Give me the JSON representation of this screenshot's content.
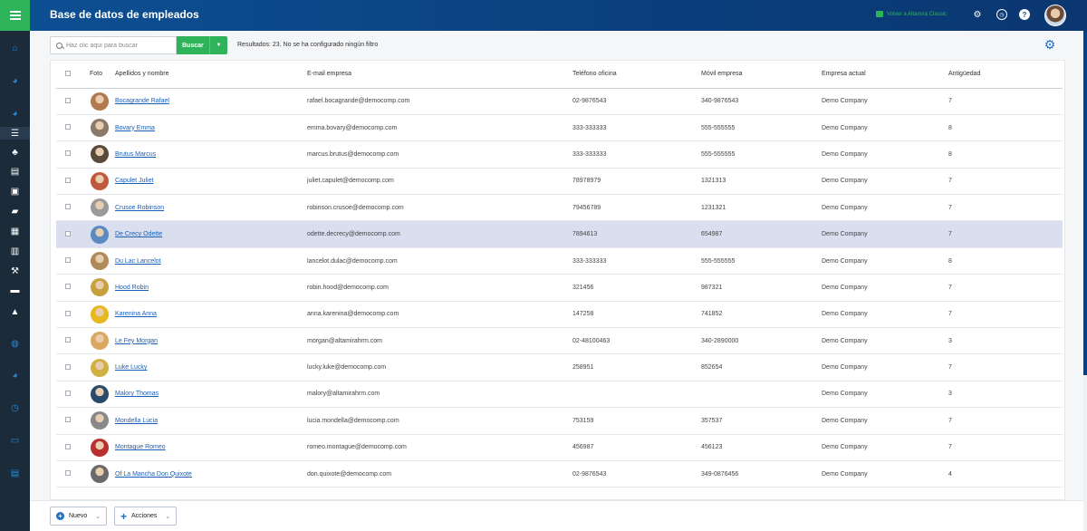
{
  "header": {
    "title": "Base de datos de empleados",
    "classic_link": "Volver a Altamira Classic"
  },
  "toolbar": {
    "search_placeholder": "Haz clic aquí para buscar",
    "search_button": "Buscar",
    "results_text": "Resultados: 23. No se ha configurado ningún filtro"
  },
  "table": {
    "columns": [
      "Foto",
      "Apellidos y nombre",
      "E-mail empresa",
      "Teléfono oficina",
      "Móvil empresa",
      "Empresa actual",
      "Antigüedad"
    ],
    "rows": [
      {
        "name": "Bocagrande Rafael",
        "email": "rafael.bocagrande@democomp.com",
        "tel": "02-9876543",
        "mov": "340-9876543",
        "emp": "Demo Company",
        "ant": "7",
        "photo_color": "#b07a4e"
      },
      {
        "name": "Bovary Emma",
        "email": "emma.bovary@democomp.com",
        "tel": "333-333333",
        "mov": "555-555555",
        "emp": "Demo Company",
        "ant": "8",
        "photo_color": "#8a7a6a"
      },
      {
        "name": "Brutus Marcus",
        "email": "marcus.brutus@democomp.com",
        "tel": "333-333333",
        "mov": "555-555555",
        "emp": "Demo Company",
        "ant": "8",
        "photo_color": "#5a4a3a"
      },
      {
        "name": "Capulet Juliet",
        "email": "juliet.capulet@democomp.com",
        "tel": "78978979",
        "mov": "1321313",
        "emp": "Demo Company",
        "ant": "7",
        "photo_color": "#c0583c"
      },
      {
        "name": "Crusoe Robinson",
        "email": "robinson.crusoe@democomp.com",
        "tel": "79456789",
        "mov": "1231321",
        "emp": "Demo Company",
        "ant": "7",
        "photo_color": "#9a9a9a"
      },
      {
        "name": "De Crecy Odette",
        "email": "odette.decrecy@democomp.com",
        "tel": "7894613",
        "mov": "654987",
        "emp": "Demo Company",
        "ant": "7",
        "photo_color": "#5a8ac0"
      },
      {
        "name": "Du Lac Lancelot",
        "email": "lancelot.dulac@democomp.com",
        "tel": "333-333333",
        "mov": "555-555555",
        "emp": "Demo Company",
        "ant": "8",
        "photo_color": "#b08a5a"
      },
      {
        "name": "Hood Robin",
        "email": "robin.hood@democomp.com",
        "tel": "321456",
        "mov": "987321",
        "emp": "Demo Company",
        "ant": "7",
        "photo_color": "#c8a040"
      },
      {
        "name": "Karenina Anna",
        "email": "anna.karenina@democomp.com",
        "tel": "147258",
        "mov": "741852",
        "emp": "Demo Company",
        "ant": "7",
        "photo_color": "#e8b820"
      },
      {
        "name": "Le Fey Morgan",
        "email": "morgan@altamirahrm.com",
        "tel": "02-48100463",
        "mov": "340-2890000",
        "emp": "Demo Company",
        "ant": "3",
        "photo_color": "#d8a860"
      },
      {
        "name": "Luke Lucky",
        "email": "lucky.luke@democomp.com",
        "tel": "258951",
        "mov": "852654",
        "emp": "Demo Company",
        "ant": "7",
        "photo_color": "#d0b040"
      },
      {
        "name": "Malory Thomas",
        "email": "malory@altamirahrm.com",
        "tel": "",
        "mov": "",
        "emp": "Demo Company",
        "ant": "3",
        "photo_color": "#2a4a6a"
      },
      {
        "name": "Mondella Lucia",
        "email": "lucia.mondella@democomp.com",
        "tel": "753159",
        "mov": "357537",
        "emp": "Demo Company",
        "ant": "7",
        "photo_color": "#888888"
      },
      {
        "name": "Montague Romeo",
        "email": "romeo.montague@democomp.com",
        "tel": "456987",
        "mov": "456123",
        "emp": "Demo Company",
        "ant": "7",
        "photo_color": "#b83030"
      },
      {
        "name": "Of La Mancha Don Quixote",
        "email": "don.quixote@democomp.com",
        "tel": "02-9876543",
        "mov": "349-0876456",
        "emp": "Demo Company",
        "ant": "4",
        "photo_color": "#6a6a6a"
      }
    ]
  },
  "footer": {
    "new_button": "Nuevo",
    "actions_button": "Acciones"
  },
  "colors": {
    "header_bg": "#0d4f93",
    "accent_green": "#2fb35a",
    "link_blue": "#1a5fb4",
    "sidebar_bg": "#1b2b3a",
    "row_highlight": "#dadff0"
  },
  "sidebar": {
    "icons": [
      "menu-icon",
      "home-icon",
      "pie-chart-icon",
      "pie-chart-icon",
      "database-icon",
      "org-chart-icon",
      "clipboard-icon",
      "briefcase-icon",
      "folder-icon",
      "wallet-icon",
      "report-icon",
      "gavel-icon",
      "toolbox-icon",
      "rocket-icon",
      "globe-icon",
      "pie-chart-icon",
      "clock-icon",
      "card-icon",
      "document-icon"
    ]
  }
}
